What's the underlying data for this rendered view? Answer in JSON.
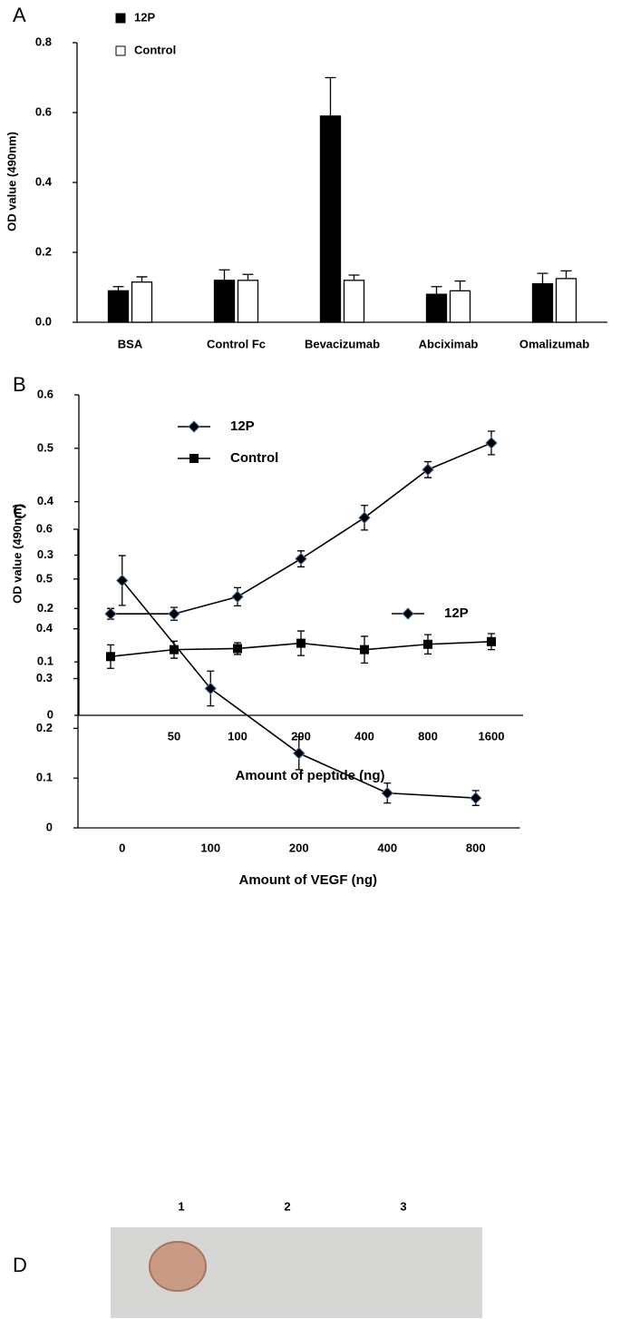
{
  "chart_data": [
    {
      "type": "bar",
      "panel_label": "A",
      "y_label": "OD value (490nm)",
      "categories": [
        "BSA",
        "Control Fc",
        "Bevacizumab",
        "Abciximab",
        "Omalizumab"
      ],
      "series": [
        {
          "name": "12P",
          "color": "#000000",
          "values": [
            0.09,
            0.12,
            0.59,
            0.08,
            0.11
          ],
          "errors": [
            0.012,
            0.03,
            0.11,
            0.022,
            0.03
          ]
        },
        {
          "name": "Control",
          "color": "#ffffff",
          "values": [
            0.115,
            0.12,
            0.12,
            0.09,
            0.125
          ],
          "errors": [
            0.015,
            0.017,
            0.015,
            0.028,
            0.022
          ]
        }
      ],
      "ylim": [
        0,
        0.8
      ],
      "yticks": [
        {
          "value": 0,
          "label": "0.0"
        },
        0.2,
        0.4,
        0.6,
        0.8
      ],
      "legend": "top-left"
    },
    {
      "type": "line",
      "panel_label": "B",
      "y_label": "OD value (490nm)",
      "x_label": "Amount of peptide (ng)",
      "categories": [
        null,
        "50",
        "100",
        "200",
        "400",
        "800",
        "1600"
      ],
      "series": [
        {
          "name": "12P",
          "color": "#000000",
          "marker": "diamond",
          "values": [
            0.19,
            0.19,
            0.222,
            0.293,
            0.37,
            0.46,
            0.51
          ],
          "errors": [
            0.01,
            0.012,
            0.017,
            0.015,
            0.023,
            0.015,
            0.022
          ]
        },
        {
          "name": "Control",
          "color": "#000000",
          "marker": "square",
          "values": [
            0.11,
            0.123,
            0.125,
            0.135,
            0.123,
            0.133,
            0.138
          ],
          "errors": [
            0.022,
            0.016,
            0.011,
            0.023,
            0.025,
            0.018,
            0.015
          ]
        }
      ],
      "ylim": [
        0,
        0.6
      ],
      "yticks": [
        0,
        0.1,
        0.2,
        0.3,
        0.4,
        0.5,
        0.6
      ],
      "legend": "top-left"
    },
    {
      "type": "line",
      "panel_label": "C",
      "x_label": "Amount of VEGF (ng)",
      "categories": [
        "0",
        "100",
        "200",
        "400",
        "800"
      ],
      "series": [
        {
          "name": "12P",
          "color": "#000000",
          "marker": "diamond",
          "values": [
            0.497,
            0.28,
            0.15,
            0.07,
            0.06
          ],
          "errors": [
            0.05,
            0.035,
            0.033,
            0.02,
            0.015
          ]
        }
      ],
      "ylim": [
        0,
        0.6
      ],
      "yticks": [
        0,
        0.1,
        0.2,
        0.3,
        0.4,
        0.5,
        0.6
      ],
      "legend": "top-right"
    }
  ],
  "blot": {
    "panel_label": "D",
    "lanes": [
      "1",
      "2",
      "3"
    ]
  }
}
